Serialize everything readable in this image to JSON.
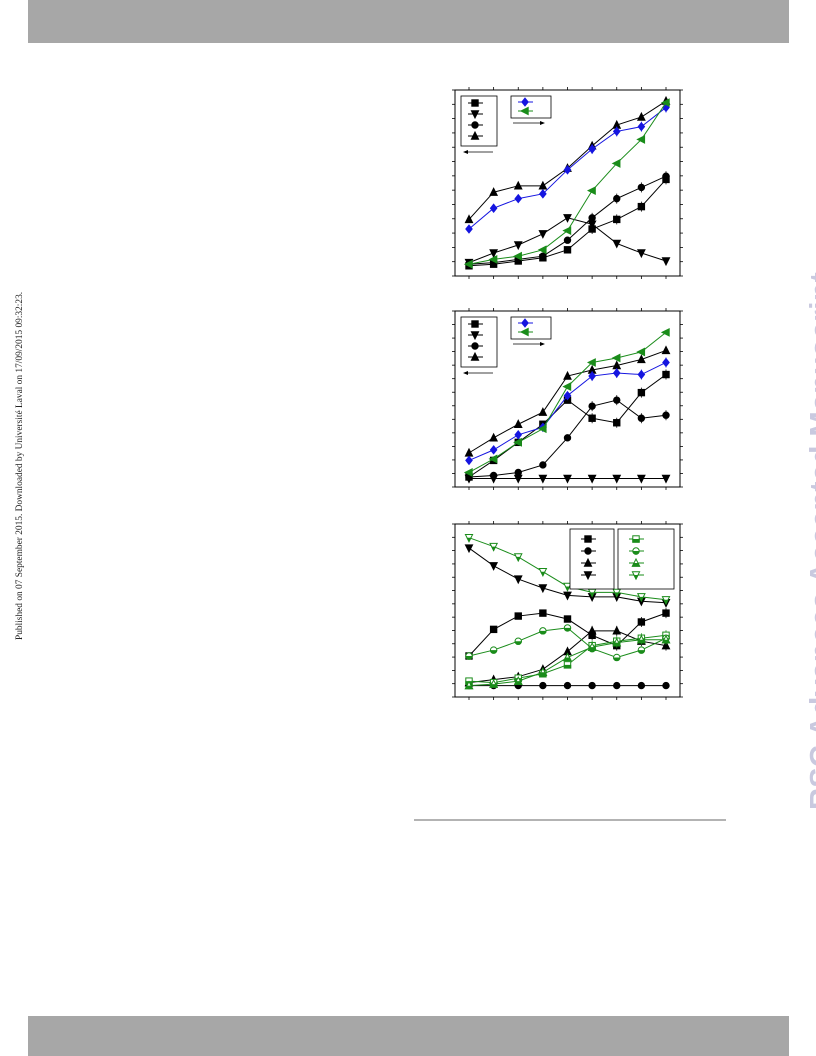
{
  "header_bar": "",
  "footer_bar": "",
  "side_note": "Published on 07 September 2015. Downloaded by Université Laval on 17/09/2015 09:32:23.",
  "watermark": "RSC Advances Accepted Manuscript",
  "colors": {
    "black": "#000000",
    "blue": "#1515e0",
    "green": "#1a8c1a",
    "bar": "#a7a7a7",
    "watermark": "#c9c9df"
  },
  "chart_data": [
    {
      "type": "line",
      "x": [
        1,
        2,
        3,
        4,
        5,
        6,
        7,
        8,
        9
      ],
      "ylim": [
        0,
        100
      ],
      "legend": [
        "top-left",
        "top-center"
      ],
      "series": [
        {
          "marker": "square",
          "color": "#000000",
          "axis": "left",
          "values": [
            2,
            3,
            5,
            7,
            12,
            25,
            31,
            39,
            56
          ]
        },
        {
          "marker": "triangle-down",
          "color": "#000000",
          "axis": "left",
          "values": [
            4,
            10,
            15,
            22,
            32,
            28,
            16,
            10,
            5
          ]
        },
        {
          "marker": "circle",
          "color": "#000000",
          "axis": "left",
          "values": [
            3,
            4,
            6,
            8,
            18,
            32,
            44,
            51,
            58
          ]
        },
        {
          "marker": "triangle-up",
          "color": "#000000",
          "axis": "left",
          "values": [
            31,
            48,
            52,
            52,
            63,
            77,
            90,
            95,
            105
          ]
        },
        {
          "marker": "diamond",
          "color": "#1515e0",
          "axis": "right",
          "values": [
            25,
            38,
            44,
            47,
            62,
            75,
            86,
            89,
            101
          ]
        },
        {
          "marker": "triangle-left",
          "color": "#1a8c1a",
          "axis": "right",
          "values": [
            3,
            6,
            8,
            12,
            24,
            49,
            66,
            81,
            104
          ]
        }
      ]
    },
    {
      "type": "line",
      "x": [
        1,
        2,
        3,
        4,
        5,
        6,
        7,
        8,
        9
      ],
      "ylim": [
        0,
        100
      ],
      "legend": [
        "top-left",
        "top-center"
      ],
      "series": [
        {
          "marker": "square",
          "color": "#000000",
          "axis": "left",
          "values": [
            2,
            13,
            25,
            37,
            53,
            41,
            38,
            58,
            70
          ]
        },
        {
          "marker": "triangle-down",
          "color": "#000000",
          "axis": "left",
          "values": [
            1,
            1,
            1,
            1,
            1,
            1,
            1,
            1,
            1
          ]
        },
        {
          "marker": "circle",
          "color": "#000000",
          "axis": "left",
          "values": [
            2,
            3,
            5,
            10,
            28,
            49,
            53,
            41,
            43
          ]
        },
        {
          "marker": "triangle-up",
          "color": "#000000",
          "axis": "left",
          "values": [
            18,
            28,
            37,
            45,
            69,
            73,
            76,
            80,
            86
          ]
        },
        {
          "marker": "diamond",
          "color": "#1515e0",
          "axis": "right",
          "values": [
            13,
            20,
            30,
            35,
            56,
            69,
            71,
            70,
            78
          ]
        },
        {
          "marker": "triangle-left",
          "color": "#1a8c1a",
          "axis": "right",
          "values": [
            5,
            14,
            25,
            34,
            62,
            78,
            81,
            85,
            98
          ]
        }
      ]
    },
    {
      "type": "line",
      "x": [
        1,
        2,
        3,
        4,
        5,
        6,
        7,
        8,
        9
      ],
      "ylim": [
        0,
        100
      ],
      "legend": "top-right",
      "series": [
        {
          "marker": "square",
          "color": "#000000",
          "values": [
            23,
            41,
            50,
            52,
            48,
            37,
            30,
            46,
            52
          ]
        },
        {
          "marker": "circle",
          "color": "#000000",
          "values": [
            3,
            3,
            3,
            3,
            3,
            3,
            3,
            3,
            3
          ]
        },
        {
          "marker": "triangle-up",
          "color": "#000000",
          "values": [
            5,
            7,
            9,
            14,
            26,
            40,
            40,
            33,
            30
          ]
        },
        {
          "marker": "triangle-down",
          "color": "#000000",
          "values": [
            96,
            84,
            75,
            69,
            64,
            63,
            63,
            60,
            59
          ]
        },
        {
          "marker": "square-half",
          "color": "#1a8c1a",
          "values": [
            6,
            5,
            8,
            11,
            17,
            30,
            33,
            35,
            37
          ]
        },
        {
          "marker": "circle-half",
          "color": "#1a8c1a",
          "values": [
            23,
            27,
            33,
            40,
            42,
            28,
            22,
            27,
            35
          ]
        },
        {
          "marker": "triangle-up-half",
          "color": "#1a8c1a",
          "values": [
            3,
            4,
            6,
            12,
            22,
            29,
            32,
            34,
            34
          ]
        },
        {
          "marker": "triangle-down-half",
          "color": "#1a8c1a",
          "values": [
            103,
            97,
            90,
            80,
            70,
            66,
            66,
            63,
            61
          ]
        }
      ]
    }
  ]
}
